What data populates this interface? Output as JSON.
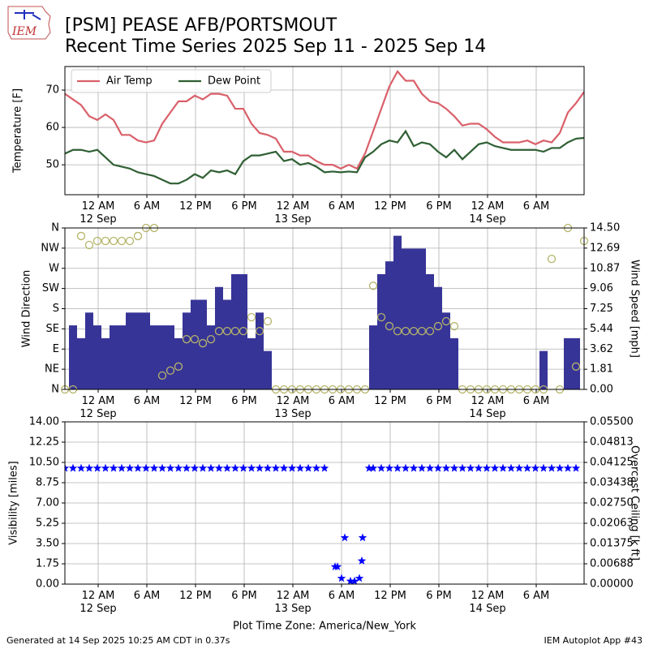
{
  "logo": "IEM",
  "title": [
    "[PSM] PEASE AFB/PORTSMOUT",
    "Recent Time Series 2025 Sep 11 - 2025 Sep 14"
  ],
  "xlabel": "Plot Time Zone: America/New_York",
  "footer_left": "Generated at 14 Sep 2025 10:25 AM CDT in 0.37s",
  "footer_right": "IEM Autoplot App #43",
  "chart_data": [
    {
      "type": "line",
      "ylabel": "Temperature [F]",
      "grid": true,
      "legend": "upper left",
      "xlim": [
        "2025-09-11T19:54",
        "2025-09-14T11:54"
      ],
      "xticks": [
        {
          "value": "2025-09-12T00:00",
          "label": "12 AM\n12 Sep"
        },
        {
          "value": "2025-09-12T06:00",
          "label": "6 AM"
        },
        {
          "value": "2025-09-12T12:00",
          "label": "12 PM"
        },
        {
          "value": "2025-09-12T18:00",
          "label": "6 PM"
        },
        {
          "value": "2025-09-13T00:00",
          "label": "12 AM\n13 Sep"
        },
        {
          "value": "2025-09-13T06:00",
          "label": "6 AM"
        },
        {
          "value": "2025-09-13T12:00",
          "label": "12 PM"
        },
        {
          "value": "2025-09-13T18:00",
          "label": "6 PM"
        },
        {
          "value": "2025-09-14T00:00",
          "label": "12 AM\n14 Sep"
        },
        {
          "value": "2025-09-14T06:00",
          "label": "6 AM"
        }
      ],
      "ylim": [
        42,
        76.3
      ],
      "yticks": [
        50,
        60,
        70
      ],
      "x": [
        "2025-09-11T19:54",
        "2025-09-11T20:54",
        "2025-09-11T21:54",
        "2025-09-11T22:54",
        "2025-09-11T23:54",
        "2025-09-12T00:54",
        "2025-09-12T01:54",
        "2025-09-12T02:54",
        "2025-09-12T03:54",
        "2025-09-12T04:54",
        "2025-09-12T05:54",
        "2025-09-12T06:54",
        "2025-09-12T07:54",
        "2025-09-12T08:54",
        "2025-09-12T09:54",
        "2025-09-12T10:54",
        "2025-09-12T11:54",
        "2025-09-12T12:54",
        "2025-09-12T13:54",
        "2025-09-12T14:54",
        "2025-09-12T15:54",
        "2025-09-12T16:54",
        "2025-09-12T17:54",
        "2025-09-12T18:54",
        "2025-09-12T19:54",
        "2025-09-12T20:54",
        "2025-09-12T21:54",
        "2025-09-12T22:54",
        "2025-09-12T23:54",
        "2025-09-13T00:54",
        "2025-09-13T01:54",
        "2025-09-13T02:54",
        "2025-09-13T03:54",
        "2025-09-13T04:54",
        "2025-09-13T05:54",
        "2025-09-13T06:54",
        "2025-09-13T07:54",
        "2025-09-13T08:54",
        "2025-09-13T09:54",
        "2025-09-13T10:54",
        "2025-09-13T11:54",
        "2025-09-13T12:54",
        "2025-09-13T13:54",
        "2025-09-13T14:54",
        "2025-09-13T15:54",
        "2025-09-13T16:54",
        "2025-09-13T17:54",
        "2025-09-13T18:54",
        "2025-09-13T19:54",
        "2025-09-13T20:54",
        "2025-09-13T21:54",
        "2025-09-13T22:54",
        "2025-09-13T23:54",
        "2025-09-14T00:54",
        "2025-09-14T01:54",
        "2025-09-14T02:54",
        "2025-09-14T03:54",
        "2025-09-14T04:54",
        "2025-09-14T05:54",
        "2025-09-14T06:54",
        "2025-09-14T07:54",
        "2025-09-14T08:54",
        "2025-09-14T09:54",
        "2025-09-14T10:54",
        "2025-09-14T11:54"
      ],
      "series": [
        {
          "name": "Air Temp",
          "color": "#d9606a",
          "values": [
            69,
            67.5,
            66,
            63,
            62,
            63.5,
            62,
            58,
            58,
            56.5,
            56,
            56.5,
            61,
            64,
            67,
            67,
            68.5,
            67.5,
            69,
            69,
            68.5,
            65,
            65,
            61,
            58.5,
            58,
            57,
            53.5,
            53.5,
            52.5,
            52.5,
            51,
            50,
            50,
            49,
            50,
            49,
            53,
            59,
            65,
            71,
            75,
            72.5,
            72.5,
            69,
            67,
            66.5,
            65,
            63,
            60.5,
            61,
            61,
            59.5,
            57.5,
            56,
            56,
            56,
            56.5,
            55.5,
            56.5,
            56,
            58.5,
            64,
            66.5,
            69.5
          ]
        },
        {
          "name": "Dew Point",
          "color": "#2f5f33",
          "values": [
            53,
            54,
            54,
            53.5,
            54,
            52,
            50,
            49.5,
            49,
            48,
            47.5,
            47,
            46,
            45,
            45,
            46,
            47.5,
            46.5,
            48.5,
            48,
            48.5,
            47.5,
            51,
            52.5,
            52.5,
            53,
            53.5,
            51,
            51.5,
            50,
            50.5,
            49.5,
            48,
            48.2,
            48,
            48.2,
            48,
            52,
            53.5,
            55.5,
            56.5,
            56,
            59,
            55,
            56,
            55.5,
            53.5,
            52,
            54,
            51.5,
            53.5,
            55.5,
            56,
            55,
            54.5,
            54,
            54,
            54,
            54,
            53.5,
            54.5,
            54.5,
            56,
            57,
            57.2
          ]
        }
      ]
    },
    {
      "type": "bar",
      "ylabel": "Wind Direction",
      "y2label": "Wind Speed [mph]",
      "grid": true,
      "xlim": [
        "2025-09-11T19:54",
        "2025-09-14T11:54"
      ],
      "xticks": [
        {
          "value": "2025-09-12T00:00",
          "label": "12 AM\n12 Sep"
        },
        {
          "value": "2025-09-12T06:00",
          "label": "6 AM"
        },
        {
          "value": "2025-09-12T12:00",
          "label": "12 PM"
        },
        {
          "value": "2025-09-12T18:00",
          "label": "6 PM"
        },
        {
          "value": "2025-09-13T00:00",
          "label": "12 AM\n13 Sep"
        },
        {
          "value": "2025-09-13T06:00",
          "label": "6 AM"
        },
        {
          "value": "2025-09-13T12:00",
          "label": "12 PM"
        },
        {
          "value": "2025-09-13T18:00",
          "label": "6 PM"
        },
        {
          "value": "2025-09-14T00:00",
          "label": "12 AM\n14 Sep"
        },
        {
          "value": "2025-09-14T06:00",
          "label": "6 AM"
        }
      ],
      "ylim": [
        0,
        360
      ],
      "yticks": [
        {
          "value": 0,
          "label": "N"
        },
        {
          "value": 45,
          "label": "NE"
        },
        {
          "value": 90,
          "label": "E"
        },
        {
          "value": 135,
          "label": "SE"
        },
        {
          "value": 180,
          "label": "S"
        },
        {
          "value": 225,
          "label": "SW"
        },
        {
          "value": 270,
          "label": "W"
        },
        {
          "value": 315,
          "label": "NW"
        },
        {
          "value": 360,
          "label": "N"
        }
      ],
      "y2lim": [
        0,
        14.5
      ],
      "y2ticks": [
        {
          "value": 0,
          "label": "0.00"
        },
        1.81,
        3.62,
        5.44,
        7.25,
        9.06,
        10.87,
        12.69,
        {
          "value": 14.5,
          "label": "14.50"
        }
      ],
      "x": [
        "2025-09-11T19:54",
        "2025-09-11T20:54",
        "2025-09-11T21:54",
        "2025-09-11T22:54",
        "2025-09-11T23:54",
        "2025-09-12T00:54",
        "2025-09-12T01:54",
        "2025-09-12T02:54",
        "2025-09-12T03:54",
        "2025-09-12T04:54",
        "2025-09-12T05:54",
        "2025-09-12T06:54",
        "2025-09-12T07:54",
        "2025-09-12T08:54",
        "2025-09-12T09:54",
        "2025-09-12T10:54",
        "2025-09-12T11:54",
        "2025-09-12T12:54",
        "2025-09-12T13:54",
        "2025-09-12T14:54",
        "2025-09-12T15:54",
        "2025-09-12T16:54",
        "2025-09-12T17:54",
        "2025-09-12T18:54",
        "2025-09-12T19:54",
        "2025-09-12T20:54",
        "2025-09-12T21:54",
        "2025-09-12T22:54",
        "2025-09-12T23:54",
        "2025-09-13T00:54",
        "2025-09-13T01:54",
        "2025-09-13T02:54",
        "2025-09-13T03:54",
        "2025-09-13T04:54",
        "2025-09-13T05:54",
        "2025-09-13T06:54",
        "2025-09-13T07:54",
        "2025-09-13T08:54",
        "2025-09-13T09:54",
        "2025-09-13T10:54",
        "2025-09-13T11:54",
        "2025-09-13T12:54",
        "2025-09-13T13:54",
        "2025-09-13T14:54",
        "2025-09-13T15:54",
        "2025-09-13T16:54",
        "2025-09-13T17:54",
        "2025-09-13T18:54",
        "2025-09-13T19:54",
        "2025-09-13T20:54",
        "2025-09-13T21:54",
        "2025-09-13T22:54",
        "2025-09-13T23:54",
        "2025-09-14T00:54",
        "2025-09-14T01:54",
        "2025-09-14T02:54",
        "2025-09-14T03:54",
        "2025-09-14T04:54",
        "2025-09-14T05:54",
        "2025-09-14T06:54",
        "2025-09-14T07:54",
        "2025-09-14T08:54",
        "2025-09-14T09:54",
        "2025-09-14T10:54",
        "2025-09-14T11:54"
      ],
      "series": [
        {
          "type": "bar",
          "axis": "y2",
          "color": "#373497",
          "values": [
            0,
            5.75,
            4.6,
            6.9,
            5.75,
            4.6,
            5.75,
            5.75,
            6.9,
            6.9,
            6.9,
            5.75,
            5.75,
            5.75,
            4.6,
            6.9,
            8.05,
            8.05,
            5.75,
            9.2,
            8.05,
            10.35,
            10.35,
            4.6,
            6.9,
            3.45,
            0,
            0,
            0,
            0,
            0,
            0,
            0,
            0,
            0,
            0,
            0,
            0,
            5.75,
            10.35,
            11.5,
            13.8,
            12.65,
            12.65,
            12.65,
            10.35,
            9.2,
            6.9,
            4.6,
            0,
            0,
            0,
            0,
            0,
            0,
            0,
            0,
            0,
            0,
            3.45,
            0,
            0,
            4.6,
            4.6,
            0
          ]
        },
        {
          "type": "scatter",
          "marker": "circle",
          "color": "#b5b46a",
          "values": [
            0,
            0,
            342,
            322,
            331,
            331,
            331,
            331,
            331,
            342,
            360,
            360,
            31,
            42,
            51,
            112,
            112,
            103,
            112,
            130,
            130,
            130,
            130,
            161,
            130,
            152,
            0,
            0,
            0,
            0,
            0,
            0,
            0,
            0,
            0,
            0,
            0,
            0,
            231,
            161,
            141,
            130,
            130,
            130,
            130,
            130,
            141,
            152,
            141,
            0,
            0,
            0,
            0,
            0,
            0,
            0,
            0,
            0,
            0,
            0,
            291,
            0,
            360,
            51,
            331
          ]
        }
      ]
    },
    {
      "type": "scatter",
      "ylabel": "Visibility [miles]",
      "y2label": "Overcast Ceiling [k ft]",
      "y2label_color": "#008000",
      "grid": true,
      "xlim": [
        "2025-09-11T19:54",
        "2025-09-14T11:54"
      ],
      "xticks": [
        {
          "value": "2025-09-12T00:00",
          "label": "12 AM\n12 Sep"
        },
        {
          "value": "2025-09-12T06:00",
          "label": "6 AM"
        },
        {
          "value": "2025-09-12T12:00",
          "label": "12 PM"
        },
        {
          "value": "2025-09-12T18:00",
          "label": "6 PM"
        },
        {
          "value": "2025-09-13T00:00",
          "label": "12 AM\n13 Sep"
        },
        {
          "value": "2025-09-13T06:00",
          "label": "6 AM"
        },
        {
          "value": "2025-09-13T12:00",
          "label": "12 PM"
        },
        {
          "value": "2025-09-13T18:00",
          "label": "6 PM"
        },
        {
          "value": "2025-09-14T00:00",
          "label": "12 AM\n14 Sep"
        },
        {
          "value": "2025-09-14T06:00",
          "label": "6 AM"
        }
      ],
      "ylim": [
        0,
        14
      ],
      "yticks": [
        {
          "value": 0,
          "label": "0.00"
        },
        1.75,
        {
          "value": 3.5,
          "label": "3.50"
        },
        5.25,
        {
          "value": 7,
          "label": "7.00"
        },
        8.75,
        {
          "value": 10.5,
          "label": "10.50"
        },
        12.25,
        {
          "value": 14,
          "label": "14.00"
        }
      ],
      "y2lim": [
        0,
        0.055
      ],
      "y2ticks": [
        {
          "value": 0,
          "label": "0.00000"
        },
        {
          "value": 0.006875,
          "label": "0.00688"
        },
        {
          "value": 0.01375,
          "label": "0.01375"
        },
        {
          "value": 0.020625,
          "label": "0.02063"
        },
        {
          "value": 0.0275,
          "label": "0.02750"
        },
        {
          "value": 0.034375,
          "label": "0.03438"
        },
        {
          "value": 0.04125,
          "label": "0.04125"
        },
        {
          "value": 0.048125,
          "label": "0.04813"
        },
        {
          "value": 0.055,
          "label": "0.05500"
        }
      ],
      "x": [
        "2025-09-11T19:54",
        "2025-09-11T20:54",
        "2025-09-11T21:54",
        "2025-09-11T22:54",
        "2025-09-11T23:54",
        "2025-09-12T00:54",
        "2025-09-12T01:54",
        "2025-09-12T02:54",
        "2025-09-12T03:54",
        "2025-09-12T04:54",
        "2025-09-12T05:54",
        "2025-09-12T06:54",
        "2025-09-12T07:54",
        "2025-09-12T08:54",
        "2025-09-12T09:54",
        "2025-09-12T10:54",
        "2025-09-12T11:54",
        "2025-09-12T12:54",
        "2025-09-12T13:54",
        "2025-09-12T14:54",
        "2025-09-12T15:54",
        "2025-09-12T16:54",
        "2025-09-12T17:54",
        "2025-09-12T18:54",
        "2025-09-12T19:54",
        "2025-09-12T20:54",
        "2025-09-12T21:54",
        "2025-09-12T22:54",
        "2025-09-12T23:54",
        "2025-09-13T00:54",
        "2025-09-13T01:54",
        "2025-09-13T02:54",
        "2025-09-13T03:54",
        "2025-09-13T05:12",
        "2025-09-13T05:30",
        "2025-09-13T06:00",
        "2025-09-13T06:24",
        "2025-09-13T07:06",
        "2025-09-13T07:36",
        "2025-09-13T08:12",
        "2025-09-13T08:30",
        "2025-09-13T08:36",
        "2025-09-13T09:24",
        "2025-09-13T09:54",
        "2025-09-13T10:54",
        "2025-09-13T11:54",
        "2025-09-13T12:54",
        "2025-09-13T13:54",
        "2025-09-13T14:54",
        "2025-09-13T15:54",
        "2025-09-13T16:54",
        "2025-09-13T17:54",
        "2025-09-13T18:54",
        "2025-09-13T19:54",
        "2025-09-13T20:54",
        "2025-09-13T21:54",
        "2025-09-13T22:54",
        "2025-09-13T23:54",
        "2025-09-14T00:54",
        "2025-09-14T01:54",
        "2025-09-14T02:54",
        "2025-09-14T03:54",
        "2025-09-14T04:54",
        "2025-09-14T05:54",
        "2025-09-14T06:54",
        "2025-09-14T07:54",
        "2025-09-14T08:54",
        "2025-09-14T09:54",
        "2025-09-14T10:54"
      ],
      "series": [
        {
          "type": "scatter",
          "marker": "star",
          "color": "#0000ff",
          "values": [
            10,
            10,
            10,
            10,
            10,
            10,
            10,
            10,
            10,
            10,
            10,
            10,
            10,
            10,
            10,
            10,
            10,
            10,
            10,
            10,
            10,
            10,
            10,
            10,
            10,
            10,
            10,
            10,
            10,
            10,
            10,
            10,
            10,
            1.5,
            1.5,
            0.5,
            4,
            0.25,
            0.25,
            0.5,
            2,
            4,
            10,
            10,
            10,
            10,
            10,
            10,
            10,
            10,
            10,
            10,
            10,
            10,
            10,
            10,
            10,
            10,
            10,
            10,
            10,
            10,
            10,
            10,
            10,
            10,
            10,
            10,
            10
          ]
        }
      ]
    }
  ]
}
